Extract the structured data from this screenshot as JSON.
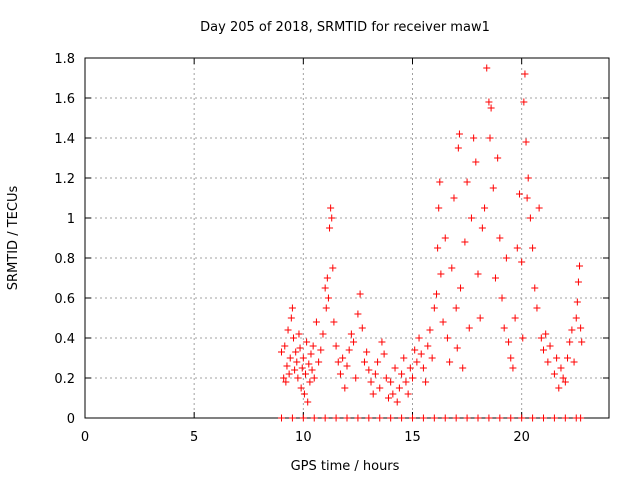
{
  "chart_data": {
    "type": "scatter",
    "title": "Day 205 of 2018, SRMTID for receiver maw1",
    "xlabel": "GPS time / hours",
    "ylabel": "SRMTID / TECUs",
    "xlim": [
      0,
      24
    ],
    "ylim": [
      0,
      1.8
    ],
    "xticks": [
      0,
      5,
      10,
      15,
      20
    ],
    "yticks": [
      0,
      0.2,
      0.4,
      0.6,
      0.8,
      1,
      1.2,
      1.4,
      1.6,
      1.8
    ],
    "ytick_labels": [
      "0",
      "0.2",
      "0.4",
      "0.6",
      "0.8",
      "1",
      "1.2",
      "1.4",
      "1.6",
      "1.8"
    ],
    "grid": true,
    "marker": "+",
    "color": "#ff0000",
    "series": [
      {
        "name": "SRMTID",
        "points": [
          [
            9.0,
            0.33
          ],
          [
            9.1,
            0.2
          ],
          [
            9.15,
            0.36
          ],
          [
            9.2,
            0.18
          ],
          [
            9.25,
            0.26
          ],
          [
            9.3,
            0.44
          ],
          [
            9.35,
            0.22
          ],
          [
            9.4,
            0.3
          ],
          [
            9.45,
            0.5
          ],
          [
            9.5,
            0.55
          ],
          [
            9.55,
            0.4
          ],
          [
            9.6,
            0.24
          ],
          [
            9.65,
            0.33
          ],
          [
            9.7,
            0.28
          ],
          [
            9.75,
            0.2
          ],
          [
            9.8,
            0.42
          ],
          [
            9.85,
            0.35
          ],
          [
            9.9,
            0.15
          ],
          [
            9.95,
            0.25
          ],
          [
            10.0,
            0.3
          ],
          [
            10.05,
            0.12
          ],
          [
            10.1,
            0.22
          ],
          [
            10.15,
            0.38
          ],
          [
            10.2,
            0.08
          ],
          [
            10.25,
            0.27
          ],
          [
            10.3,
            0.18
          ],
          [
            10.35,
            0.32
          ],
          [
            10.4,
            0.24
          ],
          [
            10.45,
            0.36
          ],
          [
            10.5,
            0.2
          ],
          [
            10.6,
            0.48
          ],
          [
            10.7,
            0.28
          ],
          [
            10.8,
            0.34
          ],
          [
            10.9,
            0.42
          ],
          [
            11.0,
            0.65
          ],
          [
            11.05,
            0.55
          ],
          [
            11.1,
            0.7
          ],
          [
            11.15,
            0.6
          ],
          [
            11.2,
            0.95
          ],
          [
            11.25,
            1.05
          ],
          [
            11.3,
            1.0
          ],
          [
            11.35,
            0.75
          ],
          [
            11.4,
            0.48
          ],
          [
            11.5,
            0.36
          ],
          [
            11.6,
            0.28
          ],
          [
            11.7,
            0.22
          ],
          [
            11.8,
            0.3
          ],
          [
            11.9,
            0.15
          ],
          [
            12.0,
            0.26
          ],
          [
            12.1,
            0.34
          ],
          [
            12.2,
            0.42
          ],
          [
            12.3,
            0.38
          ],
          [
            12.4,
            0.2
          ],
          [
            12.5,
            0.52
          ],
          [
            12.6,
            0.62
          ],
          [
            12.7,
            0.45
          ],
          [
            12.8,
            0.28
          ],
          [
            12.9,
            0.33
          ],
          [
            13.0,
            0.24
          ],
          [
            13.1,
            0.18
          ],
          [
            13.2,
            0.12
          ],
          [
            13.3,
            0.22
          ],
          [
            13.4,
            0.28
          ],
          [
            13.5,
            0.15
          ],
          [
            13.6,
            0.38
          ],
          [
            13.7,
            0.32
          ],
          [
            13.8,
            0.2
          ],
          [
            13.9,
            0.1
          ],
          [
            14.0,
            0.18
          ],
          [
            14.1,
            0.12
          ],
          [
            14.2,
            0.25
          ],
          [
            14.3,
            0.08
          ],
          [
            14.4,
            0.15
          ],
          [
            14.5,
            0.22
          ],
          [
            14.6,
            0.3
          ],
          [
            14.7,
            0.18
          ],
          [
            14.8,
            0.12
          ],
          [
            14.9,
            0.25
          ],
          [
            15.0,
            0.2
          ],
          [
            15.1,
            0.34
          ],
          [
            15.2,
            0.28
          ],
          [
            15.3,
            0.4
          ],
          [
            15.4,
            0.32
          ],
          [
            15.5,
            0.25
          ],
          [
            15.6,
            0.18
          ],
          [
            15.7,
            0.36
          ],
          [
            15.8,
            0.44
          ],
          [
            15.9,
            0.3
          ],
          [
            16.0,
            0.55
          ],
          [
            16.1,
            0.62
          ],
          [
            16.15,
            0.85
          ],
          [
            16.2,
            1.05
          ],
          [
            16.25,
            1.18
          ],
          [
            16.3,
            0.72
          ],
          [
            16.4,
            0.48
          ],
          [
            16.5,
            0.9
          ],
          [
            16.6,
            0.4
          ],
          [
            16.7,
            0.28
          ],
          [
            16.8,
            0.75
          ],
          [
            16.9,
            1.1
          ],
          [
            17.0,
            0.55
          ],
          [
            17.05,
            0.35
          ],
          [
            17.1,
            1.35
          ],
          [
            17.15,
            1.42
          ],
          [
            17.2,
            0.65
          ],
          [
            17.3,
            0.25
          ],
          [
            17.4,
            0.88
          ],
          [
            17.5,
            1.18
          ],
          [
            17.6,
            0.45
          ],
          [
            17.7,
            1.0
          ],
          [
            17.8,
            1.4
          ],
          [
            17.9,
            1.28
          ],
          [
            18.0,
            0.72
          ],
          [
            18.1,
            0.5
          ],
          [
            18.2,
            0.95
          ],
          [
            18.3,
            1.05
          ],
          [
            18.4,
            1.75
          ],
          [
            18.5,
            1.58
          ],
          [
            18.55,
            1.4
          ],
          [
            18.6,
            1.55
          ],
          [
            18.7,
            1.15
          ],
          [
            18.8,
            0.7
          ],
          [
            18.9,
            1.3
          ],
          [
            19.0,
            0.9
          ],
          [
            19.1,
            0.6
          ],
          [
            19.2,
            0.45
          ],
          [
            19.3,
            0.8
          ],
          [
            19.4,
            0.38
          ],
          [
            19.5,
            0.3
          ],
          [
            19.6,
            0.25
          ],
          [
            19.7,
            0.5
          ],
          [
            19.8,
            0.85
          ],
          [
            19.9,
            1.12
          ],
          [
            20.0,
            0.78
          ],
          [
            20.05,
            0.4
          ],
          [
            20.1,
            1.58
          ],
          [
            20.15,
            1.72
          ],
          [
            20.2,
            1.38
          ],
          [
            20.25,
            1.1
          ],
          [
            20.3,
            1.2
          ],
          [
            20.4,
            1.0
          ],
          [
            20.5,
            0.85
          ],
          [
            20.6,
            0.65
          ],
          [
            20.7,
            0.55
          ],
          [
            20.8,
            1.05
          ],
          [
            20.9,
            0.4
          ],
          [
            21.0,
            0.34
          ],
          [
            21.1,
            0.42
          ],
          [
            21.2,
            0.28
          ],
          [
            21.3,
            0.36
          ],
          [
            21.5,
            0.22
          ],
          [
            21.6,
            0.3
          ],
          [
            21.7,
            0.15
          ],
          [
            21.8,
            0.25
          ],
          [
            21.9,
            0.2
          ],
          [
            22.0,
            0.18
          ],
          [
            22.1,
            0.3
          ],
          [
            22.2,
            0.38
          ],
          [
            22.3,
            0.44
          ],
          [
            22.4,
            0.28
          ],
          [
            22.5,
            0.5
          ],
          [
            22.55,
            0.58
          ],
          [
            22.6,
            0.68
          ],
          [
            22.65,
            0.76
          ],
          [
            22.7,
            0.45
          ],
          [
            22.75,
            0.38
          ],
          [
            9.0,
            0
          ],
          [
            9.5,
            0
          ],
          [
            10.0,
            0
          ],
          [
            10.5,
            0
          ],
          [
            11.0,
            0
          ],
          [
            11.5,
            0
          ],
          [
            12.0,
            0
          ],
          [
            12.5,
            0
          ],
          [
            13.0,
            0
          ],
          [
            13.5,
            0
          ],
          [
            14.0,
            0
          ],
          [
            14.5,
            0
          ],
          [
            15.0,
            0
          ],
          [
            15.5,
            0
          ],
          [
            16.0,
            0
          ],
          [
            16.5,
            0
          ],
          [
            17.0,
            0
          ],
          [
            17.5,
            0
          ],
          [
            18.0,
            0
          ],
          [
            18.5,
            0
          ],
          [
            19.0,
            0
          ],
          [
            19.5,
            0
          ],
          [
            20.0,
            0
          ],
          [
            20.5,
            0
          ],
          [
            21.0,
            0
          ],
          [
            21.5,
            0
          ],
          [
            22.0,
            0
          ],
          [
            22.5,
            0
          ],
          [
            22.7,
            0
          ]
        ]
      }
    ]
  }
}
